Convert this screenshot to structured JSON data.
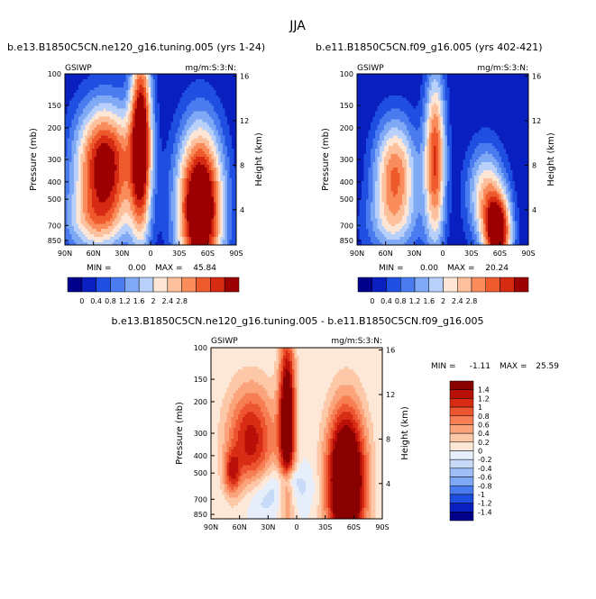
{
  "figure": {
    "season": "JJA"
  },
  "colors": {
    "levels12": [
      "#00008b",
      "#0a1fbf",
      "#1e4fe0",
      "#4a7cf0",
      "#7fa8f5",
      "#b8d0fa",
      "#fde6d6",
      "#fcc09c",
      "#fa8c5c",
      "#ef5a2c",
      "#d62a12",
      "#9c0000"
    ],
    "levels16": [
      "#00008b",
      "#0a1fbf",
      "#1e4fe0",
      "#4a7cf0",
      "#7fa8f5",
      "#9fbef8",
      "#c7daf8",
      "#e6eefc",
      "#fde8d8",
      "#fcc8a8",
      "#fba47c",
      "#f77e52",
      "#ec5530",
      "#d82c14",
      "#b81008",
      "#880000"
    ],
    "background_diff": "#fde8d8"
  },
  "chart_data": [
    {
      "type": "heatmap",
      "title": "b.e13.B1850C5CN.ne120_g16.tuning.005 (yrs 1-24)",
      "left_label": "GSIWP",
      "right_label": "mg/m:S:3:N:",
      "xlabel": "",
      "ylabel": "Pressure (mb)",
      "y2label": "Height (km)",
      "xticks": [
        "90N",
        "60N",
        "30N",
        "0",
        "30S",
        "60S",
        "90S"
      ],
      "yticks": [
        "100",
        "150",
        "200",
        "300",
        "400",
        "500",
        "700",
        "850"
      ],
      "y2ticks": [
        "16",
        "12",
        "8",
        "4"
      ],
      "min_label": "MIN =",
      "min_value": "0.00",
      "max_label": "MAX =",
      "max_value": "45.84",
      "colorbar_ticks": [
        "0",
        "0.4",
        "0.8",
        "1.2",
        "1.6",
        "2",
        "2.4",
        "2.8"
      ],
      "features": [
        {
          "lat": 48,
          "p": 320,
          "wlat": 22,
          "hp": 0.55,
          "amp": 4.5
        },
        {
          "lat": 10,
          "p": 230,
          "wlat": 8,
          "hp": 0.9,
          "amp": 4.6
        },
        {
          "lat": -52,
          "p": 560,
          "wlat": 17,
          "hp": 0.72,
          "amp": 5.5
        },
        {
          "lat": 60,
          "p": 680,
          "wlat": 25,
          "hp": 0.3,
          "amp": 1.6
        }
      ]
    },
    {
      "type": "heatmap",
      "title": "b.e11.B1850C5CN.f09_g16.005 (yrs 402-421)",
      "left_label": "GSIWP",
      "right_label": "mg/m:S:3:N:",
      "xlabel": "",
      "ylabel": "Pressure (mb)",
      "y2label": "Height (km)",
      "xticks": [
        "90N",
        "60N",
        "30N",
        "0",
        "30S",
        "60S",
        "90S"
      ],
      "yticks": [
        "100",
        "150",
        "200",
        "300",
        "400",
        "500",
        "700",
        "850"
      ],
      "y2ticks": [
        "16",
        "12",
        "8",
        "4"
      ],
      "min_label": "MIN =",
      "min_value": "0.00",
      "max_label": "MAX =",
      "max_value": "20.24",
      "colorbar_ticks": [
        "0",
        "0.4",
        "0.8",
        "1.2",
        "1.6",
        "2",
        "2.4",
        "2.8"
      ],
      "features": [
        {
          "lat": 50,
          "p": 360,
          "wlat": 16,
          "hp": 0.5,
          "amp": 3.2
        },
        {
          "lat": 8,
          "p": 300,
          "wlat": 8,
          "hp": 0.8,
          "amp": 3.6
        },
        {
          "lat": -45,
          "p": 470,
          "wlat": 14,
          "hp": 0.45,
          "amp": 2.4
        },
        {
          "lat": -58,
          "p": 780,
          "wlat": 10,
          "hp": 0.35,
          "amp": 4.5
        },
        {
          "lat": 55,
          "p": 700,
          "wlat": 22,
          "hp": 0.3,
          "amp": 1.1
        }
      ]
    },
    {
      "type": "heatmap",
      "title": "b.e13.B1850C5CN.ne120_g16.tuning.005 - b.e11.B1850C5CN.f09_g16.005",
      "left_label": "GSIWP",
      "right_label": "mg/m:S:3:N:",
      "xlabel": "",
      "ylabel": "Pressure (mb)",
      "y2label": "Height (km)",
      "xticks": [
        "90N",
        "60N",
        "30N",
        "0",
        "30S",
        "60S",
        "90S"
      ],
      "yticks": [
        "100",
        "150",
        "200",
        "300",
        "400",
        "500",
        "700",
        "850"
      ],
      "y2ticks": [
        "16",
        "12",
        "8",
        "4"
      ],
      "min_label": "MIN =",
      "min_value": "-1.11",
      "max_label": "MAX =",
      "max_value": "25.59",
      "colorbar_ticks": [
        "1.4",
        "1.2",
        "1",
        "0.8",
        "0.6",
        "0.4",
        "0.2",
        "0",
        "-0.2",
        "-0.4",
        "-0.6",
        "-0.8",
        "-1",
        "-1.2",
        "-1.4"
      ],
      "features": [
        {
          "lat": 48,
          "p": 330,
          "wlat": 18,
          "hp": 0.5,
          "amp": 1.3
        },
        {
          "lat": 10,
          "p": 250,
          "wlat": 6,
          "hp": 0.75,
          "amp": 2.0
        },
        {
          "lat": -52,
          "p": 560,
          "wlat": 14,
          "hp": 0.65,
          "amp": 2.6
        },
        {
          "lat": 68,
          "p": 500,
          "wlat": 6,
          "hp": 0.2,
          "amp": 0.9
        },
        {
          "lat": 20,
          "p": 600,
          "wlat": 25,
          "hp": 0.2,
          "amp": -0.45
        },
        {
          "lat": 8,
          "p": 540,
          "wlat": 6,
          "hp": 0.1,
          "amp": -0.5
        },
        {
          "lat": 40,
          "p": 770,
          "wlat": 12,
          "hp": 0.2,
          "amp": -0.3
        }
      ]
    }
  ]
}
